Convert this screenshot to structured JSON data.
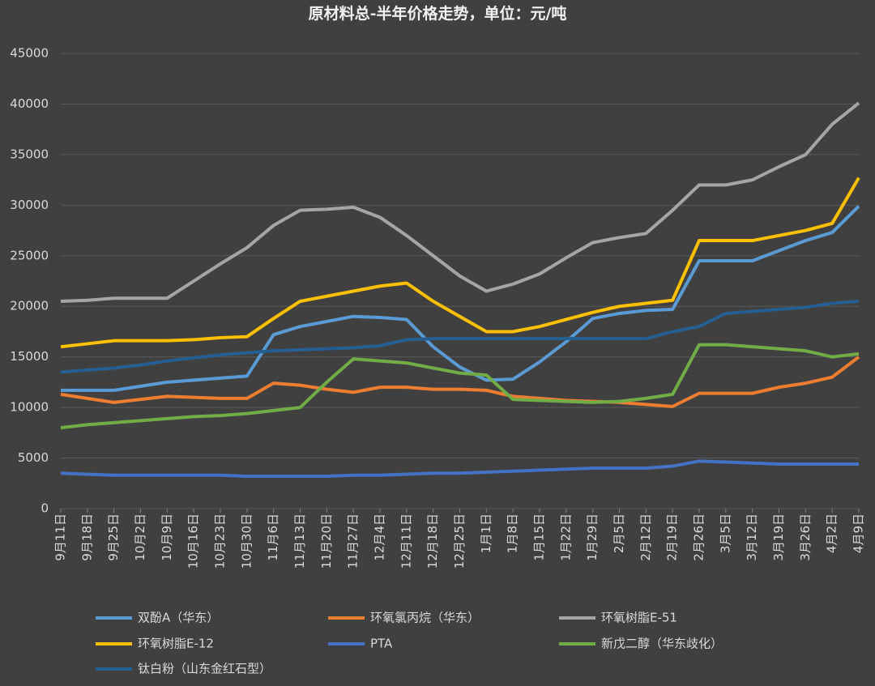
{
  "chart_data": {
    "type": "line",
    "title": "原材料总-半年价格走势，单位：元/吨",
    "categories": [
      "9月11日",
      "9月18日",
      "9月25日",
      "10月2日",
      "10月9日",
      "10月16日",
      "10月23日",
      "10月30日",
      "11月6日",
      "11月13日",
      "11月20日",
      "11月27日",
      "12月4日",
      "12月11日",
      "12月18日",
      "12月25日",
      "1月1日",
      "1月8日",
      "1月15日",
      "1月22日",
      "1月29日",
      "2月5日",
      "2月12日",
      "2月19日",
      "2月26日",
      "3月5日",
      "3月12日",
      "3月19日",
      "3月26日",
      "4月2日",
      "4月9日"
    ],
    "series": [
      {
        "name": "双酚A（华东）",
        "color": "#5b9bd5",
        "values": [
          11700,
          11700,
          11700,
          12100,
          12500,
          12700,
          12900,
          13100,
          17200,
          18000,
          18500,
          19000,
          18900,
          18700,
          16000,
          14000,
          12700,
          12800,
          14500,
          16500,
          18800,
          19300,
          19600,
          19700,
          24500,
          24500,
          24500,
          25500,
          26500,
          27300,
          29900
        ]
      },
      {
        "name": "环氧氯丙烷（华东）",
        "color": "#ed7d31",
        "values": [
          11300,
          10900,
          10500,
          10800,
          11100,
          11000,
          10900,
          10900,
          12400,
          12200,
          11800,
          11500,
          12000,
          12000,
          11800,
          11800,
          11700,
          11100,
          10900,
          10700,
          10600,
          10500,
          10300,
          10100,
          11400,
          11400,
          11400,
          12000,
          12400,
          13000,
          15000
        ]
      },
      {
        "name": "环氧树脂E-51",
        "color": "#a5a5a5",
        "values": [
          20500,
          20600,
          20800,
          20800,
          20800,
          22500,
          24200,
          25800,
          28000,
          29500,
          29600,
          29800,
          28800,
          27000,
          25000,
          23000,
          21500,
          22200,
          23200,
          24800,
          26300,
          26800,
          27200,
          29500,
          32000,
          32000,
          32500,
          33800,
          35000,
          38000,
          40100
        ]
      },
      {
        "name": "环氧树脂E-12",
        "color": "#ffc000",
        "values": [
          16000,
          16300,
          16600,
          16600,
          16600,
          16700,
          16900,
          17000,
          18800,
          20500,
          21000,
          21500,
          22000,
          22300,
          20500,
          19000,
          17500,
          17500,
          18000,
          18700,
          19400,
          20000,
          20300,
          20600,
          26500,
          26500,
          26500,
          27000,
          27500,
          28200,
          32700
        ]
      },
      {
        "name": "PTA",
        "color": "#4472c4",
        "values": [
          3500,
          3400,
          3300,
          3300,
          3300,
          3300,
          3300,
          3200,
          3200,
          3200,
          3200,
          3300,
          3300,
          3400,
          3500,
          3500,
          3600,
          3700,
          3800,
          3900,
          4000,
          4000,
          4000,
          4200,
          4700,
          4600,
          4500,
          4400,
          4400,
          4400,
          4400
        ]
      },
      {
        "name": "新戊二醇（华东歧化）",
        "color": "#70ad47",
        "values": [
          8000,
          8300,
          8500,
          8700,
          8900,
          9100,
          9200,
          9400,
          9700,
          10000,
          12500,
          14800,
          14600,
          14400,
          13900,
          13400,
          13200,
          10800,
          10700,
          10600,
          10500,
          10600,
          10900,
          11300,
          16200,
          16200,
          16000,
          15800,
          15600,
          15000,
          15300
        ]
      },
      {
        "name": "钛白粉（山东金红石型）",
        "color": "#255e91",
        "values": [
          13500,
          13700,
          13900,
          14200,
          14600,
          14900,
          15200,
          15400,
          15600,
          15700,
          15800,
          15900,
          16100,
          16700,
          16800,
          16800,
          16800,
          16800,
          16800,
          16800,
          16800,
          16800,
          16800,
          17500,
          18000,
          19300,
          19500,
          19700,
          19900,
          20300,
          20500
        ]
      }
    ],
    "ylim": [
      0,
      45000
    ],
    "yticks": [
      0,
      5000,
      10000,
      15000,
      20000,
      25000,
      30000,
      35000,
      40000,
      45000
    ],
    "grid": true
  }
}
